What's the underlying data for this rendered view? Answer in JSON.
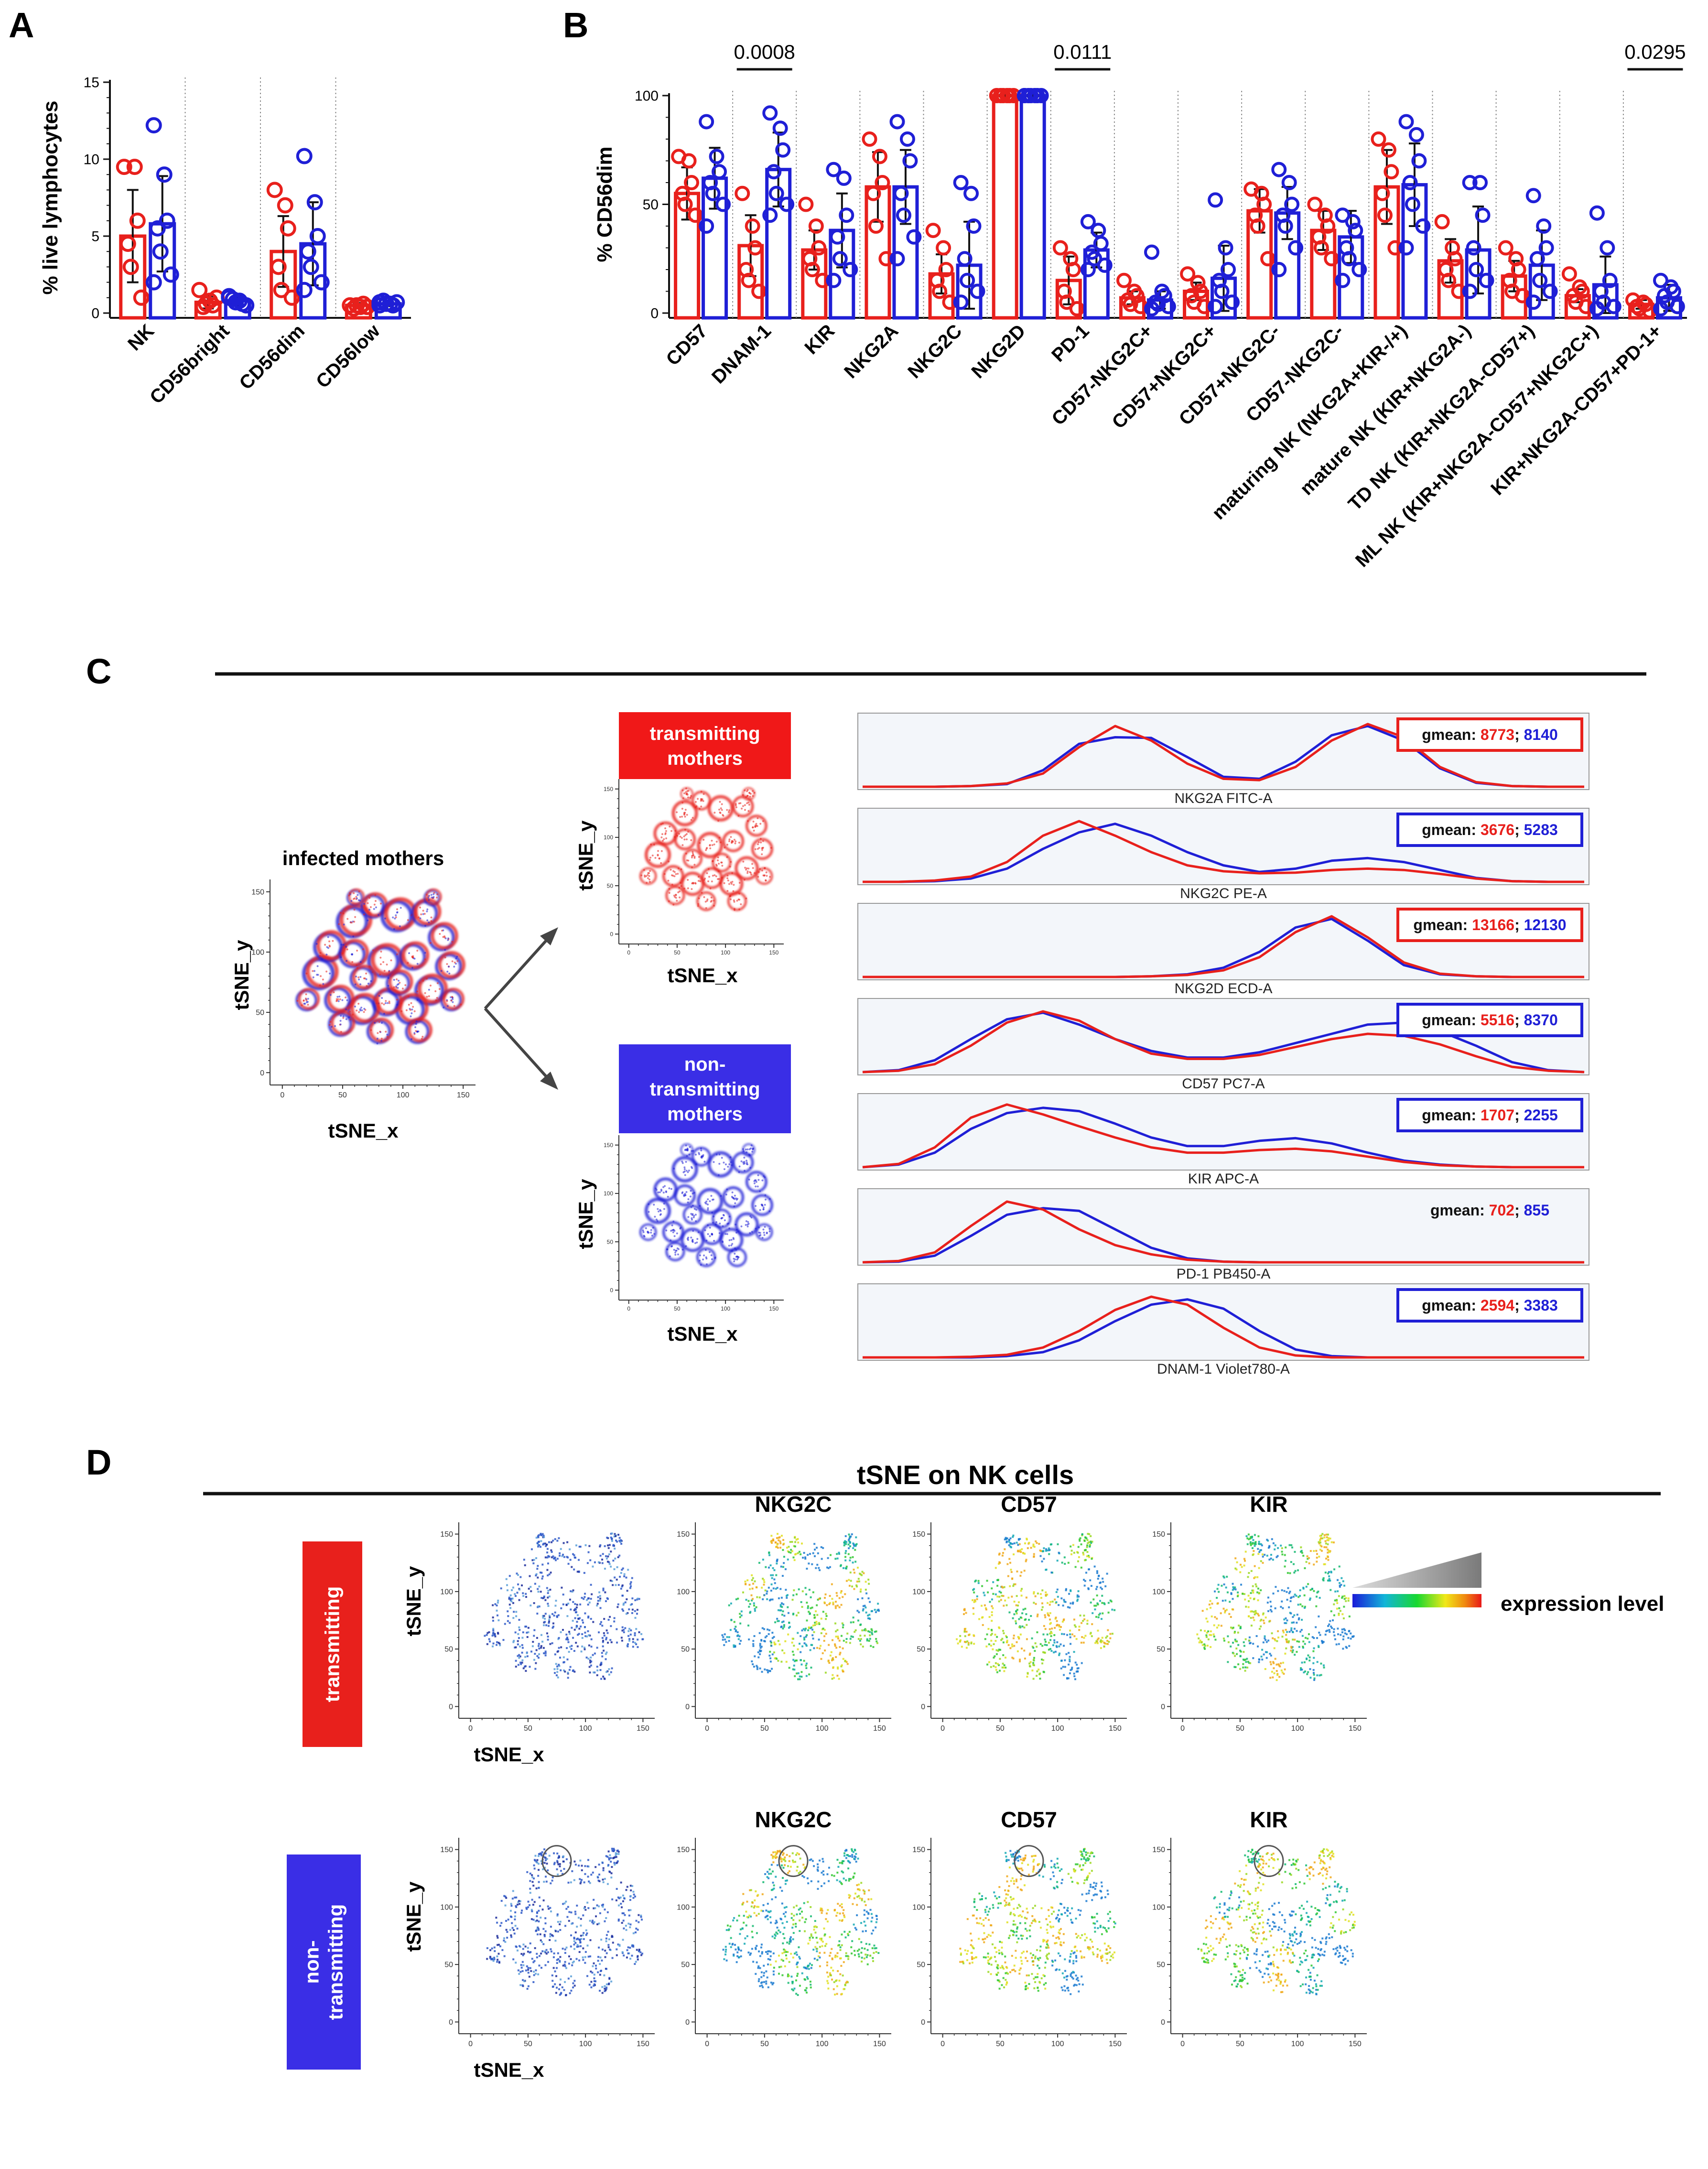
{
  "panel_letters": [
    "A",
    "B",
    "C",
    "D"
  ],
  "colors": {
    "red": "#e8201c",
    "blue": "#1f1fd6",
    "black": "#111111",
    "fill_bg": "#f3f6fa"
  },
  "chart_data": [
    {
      "id": "A",
      "type": "bar",
      "ylabel": "% live lymphocytes",
      "ylim": [
        0,
        15
      ],
      "yticks": [
        "0",
        "5",
        "10",
        "15"
      ],
      "categories": [
        "NK",
        "CD56bright",
        "CD56dim",
        "CD56low"
      ],
      "series": [
        {
          "name": "transmitting",
          "color": "red",
          "values": [
            5.0,
            0.7,
            4.0,
            0.5
          ],
          "errors": [
            3.0,
            0.4,
            2.3,
            0.15
          ],
          "points": [
            [
              9.5,
              9.5,
              6,
              4.5,
              3,
              1
            ],
            [
              1.5,
              0.8,
              0.5,
              0.4,
              0.6,
              1.0
            ],
            [
              8,
              7,
              5.5,
              3,
              1.5,
              1
            ],
            [
              0.5,
              0.4,
              0.6,
              0.3,
              0.5,
              0.4
            ]
          ]
        },
        {
          "name": "non-transmitting",
          "color": "blue",
          "values": [
            5.8,
            0.8,
            4.5,
            0.6
          ],
          "errors": [
            3.1,
            0.3,
            2.7,
            0.15
          ],
          "points": [
            [
              12.2,
              9,
              6,
              5.5,
              4,
              2.5,
              2
            ],
            [
              1.0,
              0.8,
              0.6,
              0.9,
              0.7,
              0.5,
              1.1
            ],
            [
              10.2,
              7.2,
              5,
              4,
              3,
              2,
              1.5
            ],
            [
              0.7,
              0.6,
              0.5,
              0.8,
              0.6,
              0.7,
              0.5
            ]
          ]
        }
      ]
    },
    {
      "id": "B",
      "type": "bar",
      "ylabel": "% CD56dim",
      "ylim": [
        0,
        100
      ],
      "yticks": [
        "0",
        "50",
        "100"
      ],
      "categories": [
        "CD57",
        "DNAM-1",
        "KIR",
        "NKG2A",
        "NKG2C",
        "NKG2D",
        "PD-1",
        "CD57-NKG2C+",
        "CD57+NKG2C+",
        "CD57+NKG2C-",
        "CD57-NKG2C-",
        "maturing NK (NKG2A+KIR-/+)",
        "mature NK (KIR+NKG2A-)",
        "TD NK (KIR+NKG2A-CD57+)",
        "ML NK (KIR+NKG2A-CD57+NKG2C+)",
        "KIR+NKG2A-CD57+PD-1+"
      ],
      "series": [
        {
          "name": "transmitting",
          "color": "red",
          "values": [
            55,
            31,
            29,
            58,
            18,
            100,
            15,
            7,
            10,
            47,
            38,
            58,
            24,
            17,
            8,
            4
          ],
          "errors": [
            12,
            14,
            9,
            16,
            9,
            0.5,
            11,
            3,
            4,
            10,
            9,
            17,
            10,
            7,
            3,
            2
          ],
          "points": [
            [
              72,
              70,
              60,
              55,
              50,
              45
            ],
            [
              55,
              40,
              30,
              20,
              15,
              10
            ],
            [
              50,
              40,
              30,
              25,
              20,
              15
            ],
            [
              80,
              72,
              60,
              55,
              40,
              25
            ],
            [
              38,
              30,
              20,
              15,
              10,
              5
            ],
            [
              100,
              100,
              100,
              100,
              100,
              100
            ],
            [
              30,
              25,
              20,
              10,
              5,
              2
            ],
            [
              15,
              10,
              8,
              6,
              4,
              3
            ],
            [
              18,
              14,
              10,
              8,
              5,
              3
            ],
            [
              57,
              55,
              50,
              45,
              40,
              25
            ],
            [
              50,
              45,
              40,
              35,
              30,
              25
            ],
            [
              80,
              75,
              65,
              55,
              45,
              30
            ],
            [
              42,
              30,
              25,
              20,
              15,
              10
            ],
            [
              30,
              25,
              20,
              15,
              10,
              8
            ],
            [
              18,
              12,
              10,
              8,
              5,
              3
            ],
            [
              6,
              5,
              4,
              3,
              2,
              1
            ]
          ]
        },
        {
          "name": "non-transmitting",
          "color": "blue",
          "values": [
            62,
            66,
            38,
            58,
            22,
            100,
            29,
            6,
            16,
            46,
            35,
            59,
            29,
            22,
            13,
            7
          ],
          "errors": [
            14,
            17,
            17,
            17,
            20,
            0.5,
            8,
            4,
            15,
            12,
            12,
            19,
            20,
            16,
            13,
            6
          ],
          "points": [
            [
              88,
              72,
              65,
              60,
              55,
              50,
              40
            ],
            [
              92,
              85,
              75,
              65,
              55,
              50,
              45
            ],
            [
              66,
              62,
              45,
              35,
              25,
              20,
              15
            ],
            [
              88,
              80,
              70,
              55,
              45,
              35,
              25
            ],
            [
              60,
              55,
              40,
              25,
              15,
              10,
              5
            ],
            [
              100,
              100,
              100,
              100,
              100,
              100,
              100
            ],
            [
              42,
              38,
              32,
              28,
              25,
              22,
              20
            ],
            [
              28,
              10,
              8,
              5,
              4,
              3,
              2
            ],
            [
              52,
              30,
              20,
              15,
              10,
              5,
              3
            ],
            [
              66,
              60,
              50,
              45,
              40,
              30,
              20
            ],
            [
              45,
              42,
              38,
              30,
              25,
              20,
              15
            ],
            [
              88,
              82,
              70,
              60,
              50,
              40,
              30
            ],
            [
              60,
              60,
              45,
              30,
              20,
              15,
              10
            ],
            [
              54,
              40,
              30,
              25,
              15,
              10,
              5
            ],
            [
              46,
              30,
              15,
              10,
              5,
              3,
              2
            ],
            [
              15,
              12,
              10,
              8,
              5,
              3,
              2
            ]
          ]
        }
      ],
      "significance": [
        {
          "label": "0.0008",
          "category": "DNAM-1"
        },
        {
          "label": "0.0111",
          "category": "PD-1"
        },
        {
          "label": "0.0295",
          "category": "KIR+NKG2A-CD57+PD-1+"
        }
      ]
    },
    {
      "id": "C",
      "type": "area",
      "title_tsne": "infected mothers",
      "tsne_xlabel": "tSNE_x",
      "tsne_ylabel": "tSNE_y",
      "tsne_ticks": [
        "0",
        "50",
        "100",
        "150"
      ],
      "group_labels": [
        {
          "line1": "transmitting",
          "line2": "mothers"
        },
        {
          "line1": "non-",
          "line2": "transmitting",
          "line3": "mothers"
        }
      ],
      "histograms": [
        {
          "label": "NKG2A FITC-A",
          "gmean_red": "8773",
          "gmean_blue": "8140",
          "box": "red",
          "red": [
            0,
            0,
            0,
            0.01,
            0.05,
            0.2,
            0.6,
            0.92,
            0.7,
            0.35,
            0.12,
            0.1,
            0.3,
            0.7,
            0.95,
            0.75,
            0.3,
            0.07,
            0.01,
            0,
            0
          ],
          "blue": [
            0,
            0,
            0,
            0.01,
            0.04,
            0.25,
            0.65,
            0.75,
            0.74,
            0.45,
            0.15,
            0.12,
            0.38,
            0.78,
            0.92,
            0.7,
            0.28,
            0.06,
            0.01,
            0,
            0
          ]
        },
        {
          "label": "NKG2C PE-A",
          "gmean_red": "3676",
          "gmean_blue": "5283",
          "box": "blue",
          "red": [
            0,
            0,
            0.02,
            0.08,
            0.3,
            0.7,
            0.92,
            0.7,
            0.45,
            0.25,
            0.16,
            0.13,
            0.14,
            0.18,
            0.2,
            0.18,
            0.12,
            0.05,
            0.01,
            0,
            0
          ],
          "blue": [
            0,
            0,
            0.01,
            0.05,
            0.2,
            0.5,
            0.75,
            0.88,
            0.7,
            0.45,
            0.25,
            0.15,
            0.2,
            0.32,
            0.36,
            0.3,
            0.18,
            0.06,
            0.01,
            0,
            0
          ]
        },
        {
          "label": "NKG2D ECD-A",
          "gmean_red": "13166",
          "gmean_blue": "12130",
          "box": "red",
          "red": [
            0,
            0,
            0,
            0,
            0,
            0,
            0,
            0,
            0.01,
            0.03,
            0.1,
            0.3,
            0.68,
            0.92,
            0.6,
            0.22,
            0.05,
            0.01,
            0,
            0,
            0
          ],
          "blue": [
            0,
            0,
            0,
            0,
            0,
            0,
            0,
            0,
            0.01,
            0.04,
            0.14,
            0.38,
            0.75,
            0.88,
            0.55,
            0.18,
            0.04,
            0.01,
            0,
            0,
            0
          ]
        },
        {
          "label": "CD57 PC7-A",
          "gmean_red": "5516",
          "gmean_blue": "8370",
          "box": "blue",
          "red": [
            0,
            0.02,
            0.12,
            0.4,
            0.75,
            0.92,
            0.78,
            0.5,
            0.28,
            0.2,
            0.2,
            0.26,
            0.38,
            0.5,
            0.58,
            0.55,
            0.42,
            0.24,
            0.08,
            0.02,
            0
          ],
          "blue": [
            0,
            0.03,
            0.18,
            0.5,
            0.8,
            0.9,
            0.72,
            0.5,
            0.32,
            0.22,
            0.22,
            0.3,
            0.44,
            0.58,
            0.72,
            0.75,
            0.62,
            0.4,
            0.15,
            0.03,
            0
          ]
        },
        {
          "label": "KIR APC-A",
          "gmean_red": "1707",
          "gmean_blue": "2255",
          "box": "blue",
          "red": [
            0,
            0.05,
            0.3,
            0.75,
            0.95,
            0.8,
            0.62,
            0.45,
            0.3,
            0.22,
            0.22,
            0.26,
            0.28,
            0.24,
            0.16,
            0.08,
            0.03,
            0.01,
            0,
            0,
            0
          ],
          "blue": [
            0,
            0.04,
            0.22,
            0.58,
            0.82,
            0.9,
            0.85,
            0.66,
            0.45,
            0.32,
            0.32,
            0.4,
            0.44,
            0.36,
            0.22,
            0.1,
            0.04,
            0.01,
            0,
            0,
            0
          ]
        },
        {
          "label": "PD-1 PB450-A",
          "gmean_red": "702",
          "gmean_blue": "855",
          "box": "none",
          "red": [
            0,
            0.02,
            0.15,
            0.55,
            0.92,
            0.8,
            0.5,
            0.26,
            0.12,
            0.04,
            0.01,
            0,
            0,
            0,
            0,
            0,
            0,
            0,
            0,
            0,
            0
          ],
          "blue": [
            0,
            0.01,
            0.1,
            0.4,
            0.72,
            0.82,
            0.78,
            0.5,
            0.22,
            0.06,
            0.01,
            0,
            0,
            0,
            0,
            0,
            0,
            0,
            0,
            0,
            0
          ]
        },
        {
          "label": "DNAM-1 Violet780-A",
          "gmean_red": "2594",
          "gmean_blue": "3383",
          "box": "blue",
          "red": [
            0,
            0,
            0,
            0.01,
            0.04,
            0.15,
            0.4,
            0.72,
            0.92,
            0.8,
            0.45,
            0.15,
            0.03,
            0,
            0,
            0,
            0,
            0,
            0,
            0,
            0
          ],
          "blue": [
            0,
            0,
            0,
            0,
            0.02,
            0.08,
            0.26,
            0.55,
            0.8,
            0.88,
            0.74,
            0.4,
            0.12,
            0.02,
            0,
            0,
            0,
            0,
            0,
            0,
            0
          ]
        }
      ]
    },
    {
      "id": "D",
      "type": "scatter",
      "title": "tSNE on NK cells",
      "markers": [
        "NKG2C",
        "CD57",
        "KIR"
      ],
      "rows": [
        "transmitting",
        "non-transmitting"
      ],
      "row_labels": [
        [
          "transmitting"
        ],
        [
          "non-",
          "transmitting"
        ]
      ],
      "xlabel": "tSNE_x",
      "ylabel": "tSNE_y",
      "ticks": [
        "0",
        "50",
        "100",
        "150"
      ],
      "legend_label": "expression level"
    }
  ],
  "gmean_prefix": "gmean: "
}
